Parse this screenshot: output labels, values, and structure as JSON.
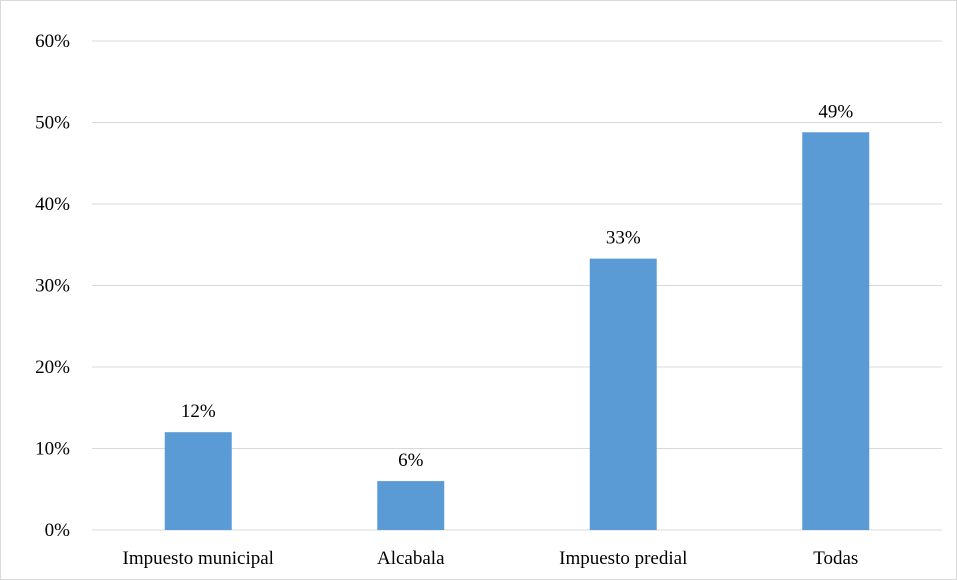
{
  "chart_data": {
    "type": "bar",
    "categories": [
      "Impuesto municipal",
      "Alcabala",
      "Impuesto predial",
      "Todas"
    ],
    "values": [
      12,
      6,
      33.3,
      48.8
    ],
    "data_labels": [
      "12%",
      "6%",
      "33%",
      "49%"
    ],
    "yticks": [
      "0%",
      "10%",
      "20%",
      "30%",
      "40%",
      "50%",
      "60%"
    ],
    "ylim": [
      0,
      60
    ],
    "grid": true,
    "legend": "none",
    "bar_color": "#5b9bd5",
    "grid_color": "#d9d9d9"
  }
}
